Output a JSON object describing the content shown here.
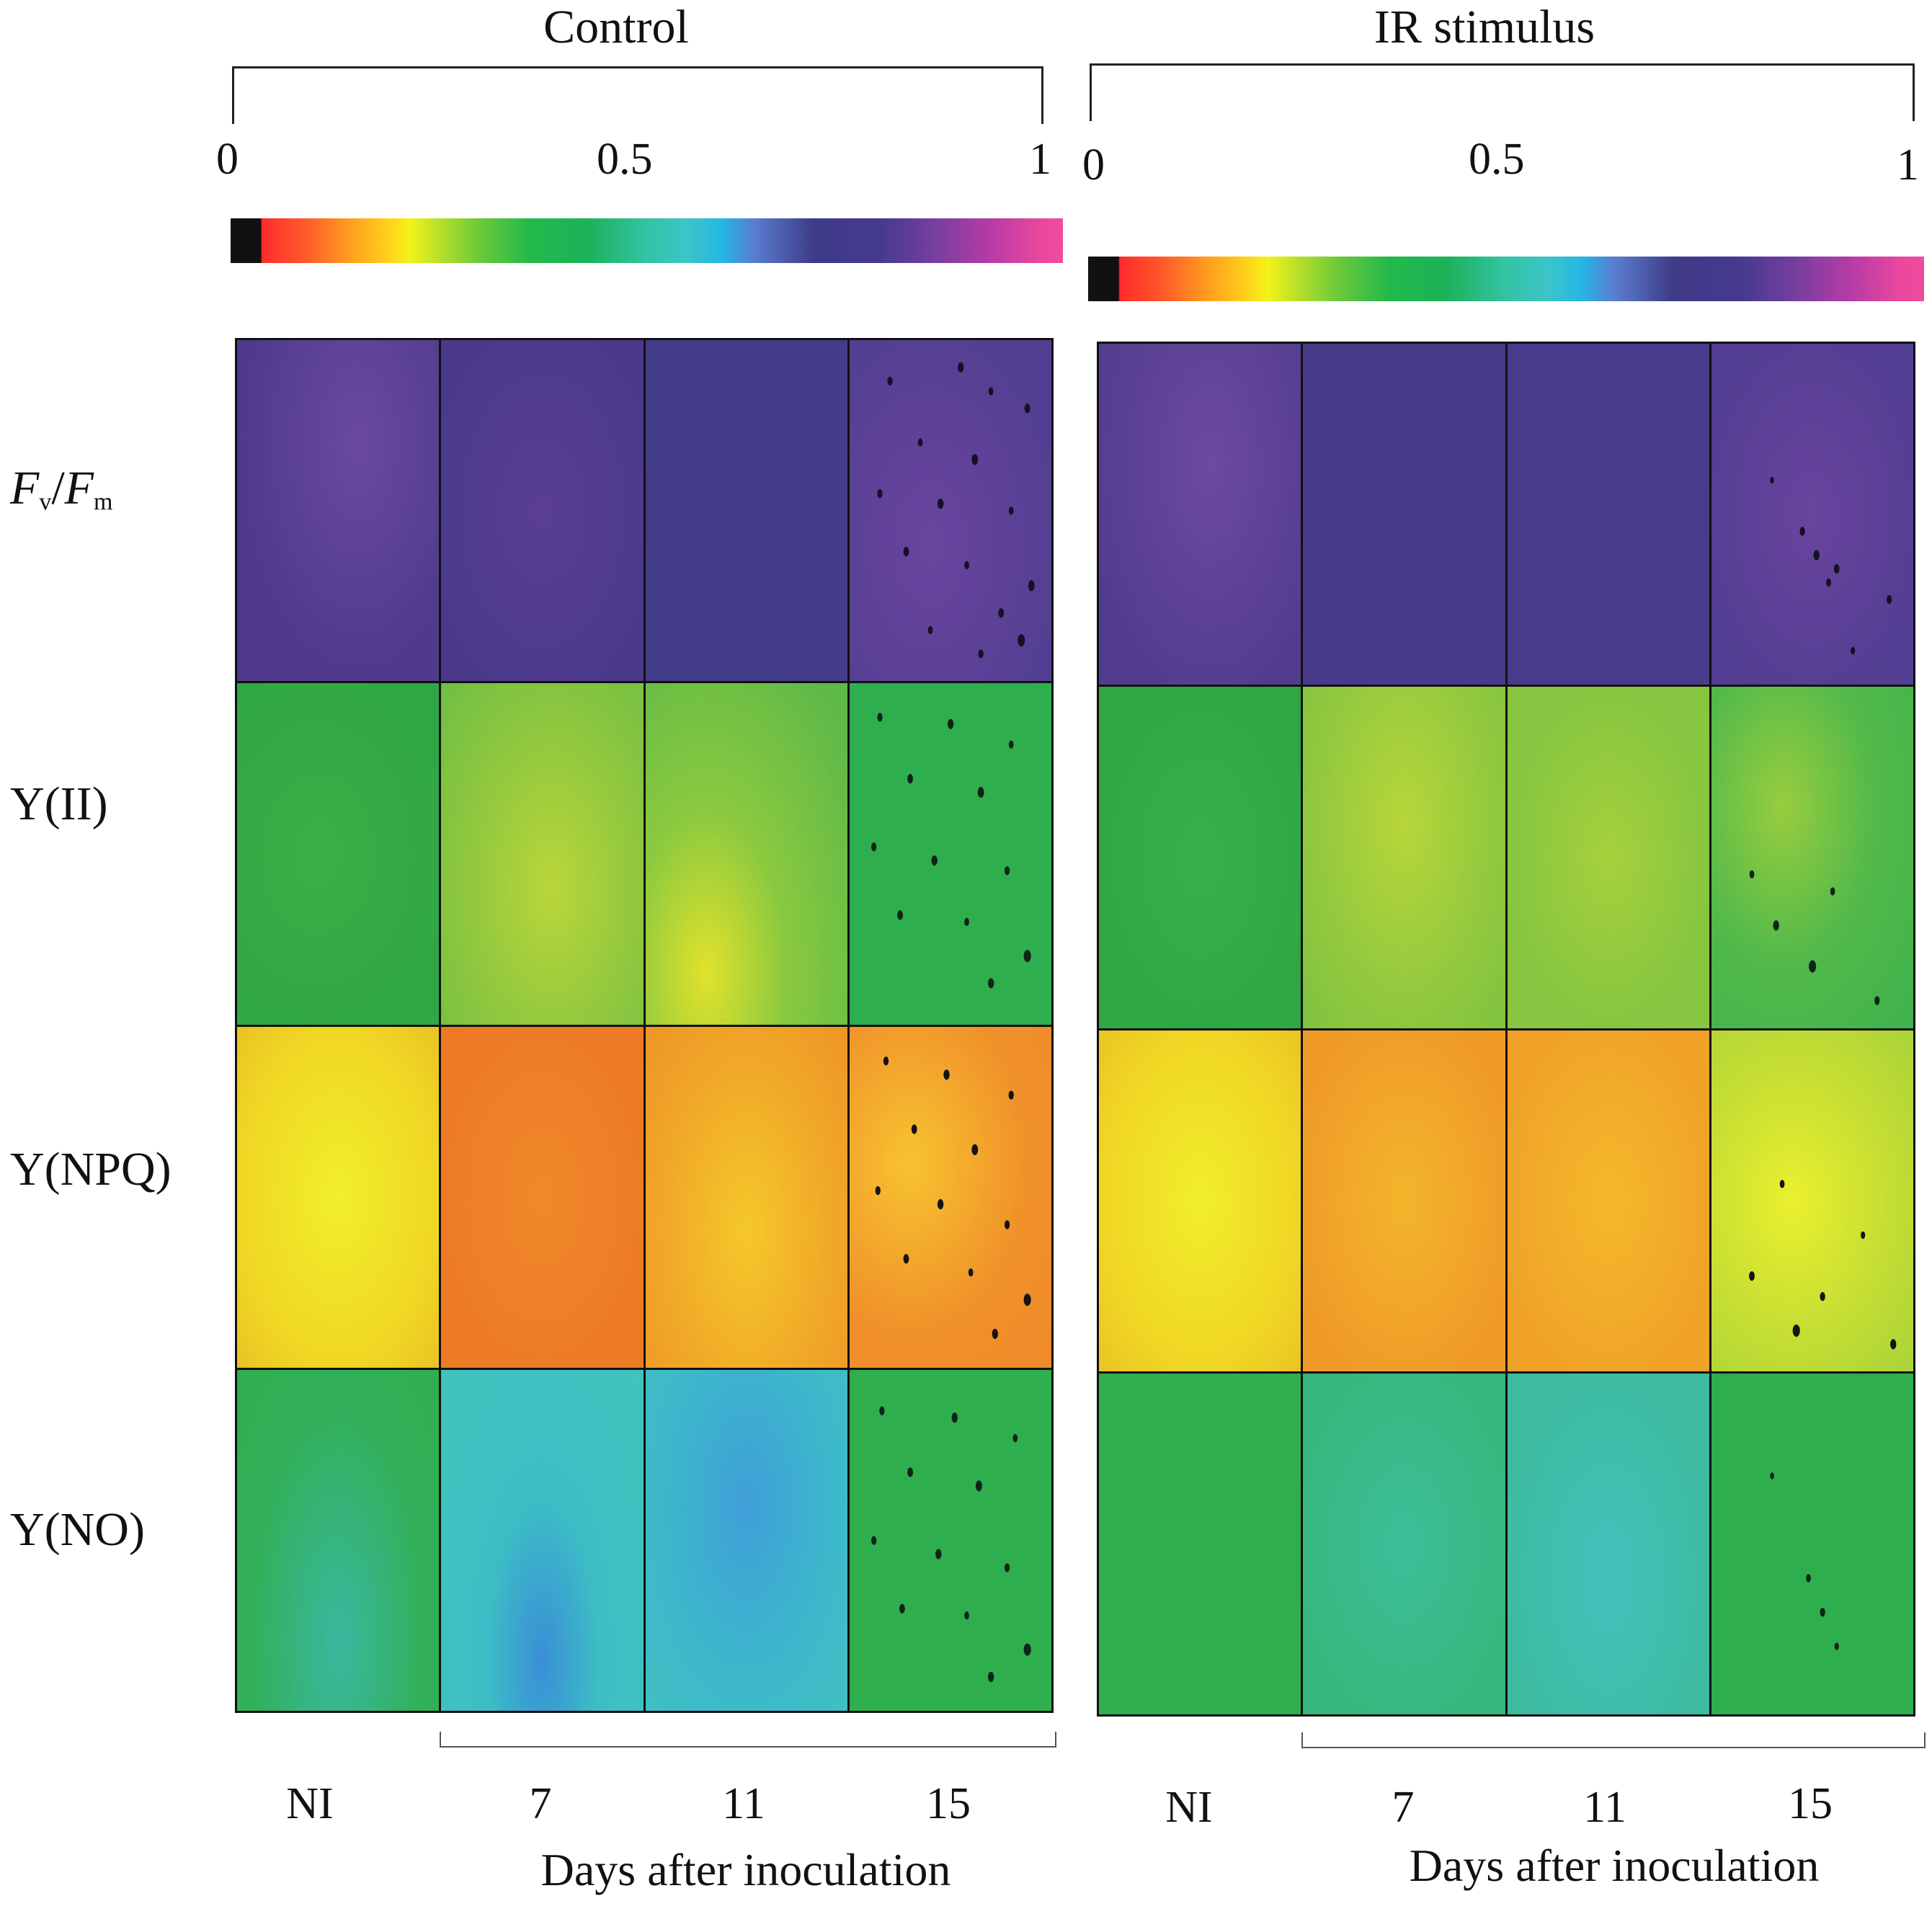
{
  "figure": {
    "panels": [
      {
        "title": "Control",
        "colorbar": {
          "ticks": [
            "0",
            "0.5",
            "1"
          ],
          "range": [
            0,
            1
          ]
        },
        "columns": [
          "NI",
          "7",
          "11",
          "15"
        ],
        "xlabel": "Days after inoculation"
      },
      {
        "title": "IR stimulus",
        "colorbar": {
          "ticks": [
            "0",
            "0.5",
            "1"
          ],
          "range": [
            0,
            1
          ]
        },
        "columns": [
          "NI",
          "7",
          "11",
          "15"
        ],
        "xlabel": "Days after inoculation"
      }
    ],
    "rows": [
      {
        "label_main": "F",
        "label_sub_v": "v",
        "label_mid": "/",
        "label_main2": "F",
        "label_sub_m": "m"
      },
      {
        "label": "Y(II)"
      },
      {
        "label": "Y(NPQ)"
      },
      {
        "label": "Y(NO)"
      }
    ],
    "colors": {
      "fvfm": "#4b3a8a",
      "yii": "#3ab34a",
      "ynpq": "#f08a24",
      "yno": "#2fae4e"
    }
  }
}
